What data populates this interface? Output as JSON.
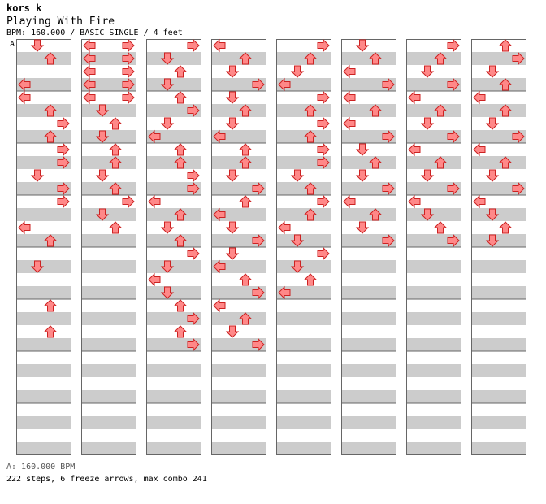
{
  "header": {
    "artist": "kors k",
    "title": "Playing With Fire",
    "subtitle": "BPM: 160.000 / BASIC SINGLE / 4 feet"
  },
  "bpm_marker": "A",
  "footer": {
    "bpm_legend": "A: 160.000 BPM",
    "stats": "222 steps, 6 freeze arrows, max combo 241"
  },
  "colors": {
    "note_quarter": "#ff8888",
    "note_eighth": "#66aaff",
    "freeze": "#88dd88",
    "band_gray": "#cccccc",
    "band_white": "#ffffff",
    "border": "#666666"
  },
  "chart_data": {
    "type": "stepchart",
    "lanes": [
      "left",
      "down",
      "up",
      "right"
    ],
    "measures_per_column": 8,
    "beats_per_measure": 4,
    "columns": [
      {
        "notes": [
          [
            1,
            0
          ],
          [
            2,
            1
          ],
          [
            0,
            3
          ],
          [
            0,
            4
          ],
          [
            2,
            5
          ],
          [
            3,
            6
          ],
          [
            2,
            7
          ],
          [
            3,
            8
          ],
          [
            3,
            9
          ],
          [
            1,
            10
          ],
          [
            3,
            11
          ],
          [
            3,
            12
          ],
          [
            0,
            14
          ],
          [
            2,
            15
          ],
          [
            1,
            17
          ],
          [
            2,
            20
          ],
          [
            2,
            22
          ]
        ]
      },
      {
        "notes": [
          [
            0,
            0
          ],
          [
            3,
            0
          ],
          [
            0,
            1
          ],
          [
            3,
            1
          ],
          [
            0,
            2
          ],
          [
            3,
            2
          ],
          [
            0,
            3
          ],
          [
            3,
            3
          ],
          [
            0,
            4
          ],
          [
            3,
            4
          ],
          [
            1,
            5
          ],
          [
            2,
            6
          ],
          [
            1,
            7
          ],
          [
            2,
            8
          ],
          [
            2,
            9
          ],
          [
            1,
            10
          ],
          [
            2,
            11
          ],
          [
            3,
            12
          ],
          [
            1,
            13
          ],
          [
            2,
            14
          ]
        ]
      },
      {
        "notes": [
          [
            3,
            0
          ],
          [
            1,
            1
          ],
          [
            2,
            2
          ],
          [
            1,
            3
          ],
          [
            2,
            4
          ],
          [
            3,
            5
          ],
          [
            1,
            6
          ],
          [
            0,
            7
          ],
          [
            2,
            8
          ],
          [
            2,
            9
          ],
          [
            3,
            10
          ],
          [
            3,
            11
          ],
          [
            0,
            12
          ],
          [
            2,
            13
          ],
          [
            1,
            14
          ],
          [
            2,
            15
          ],
          [
            3,
            16
          ],
          [
            1,
            17
          ],
          [
            0,
            18
          ],
          [
            1,
            19
          ],
          [
            2,
            20
          ],
          [
            3,
            21
          ],
          [
            2,
            22
          ],
          [
            3,
            23
          ]
        ]
      },
      {
        "notes": [
          [
            0,
            0
          ],
          [
            2,
            1
          ],
          [
            1,
            2
          ],
          [
            3,
            3
          ],
          [
            1,
            4
          ],
          [
            2,
            5
          ],
          [
            1,
            6
          ],
          [
            0,
            7
          ],
          [
            2,
            8
          ],
          [
            2,
            9
          ],
          [
            1,
            10
          ],
          [
            3,
            11
          ],
          [
            2,
            12
          ],
          [
            0,
            13
          ],
          [
            1,
            14
          ],
          [
            3,
            15
          ],
          [
            1,
            16
          ],
          [
            0,
            17
          ],
          [
            2,
            18
          ],
          [
            3,
            19
          ],
          [
            0,
            20
          ],
          [
            2,
            21
          ],
          [
            1,
            22
          ],
          [
            3,
            23
          ]
        ]
      },
      {
        "notes": [
          [
            3,
            0
          ],
          [
            2,
            1
          ],
          [
            1,
            2
          ],
          [
            0,
            3
          ],
          [
            3,
            4
          ],
          [
            2,
            5
          ],
          [
            3,
            6
          ],
          [
            2,
            7
          ],
          [
            3,
            8
          ],
          [
            3,
            9
          ],
          [
            1,
            10
          ],
          [
            2,
            11
          ],
          [
            3,
            12
          ],
          [
            2,
            13
          ],
          [
            0,
            14
          ],
          [
            1,
            15
          ],
          [
            3,
            16
          ],
          [
            1,
            17
          ],
          [
            2,
            18
          ],
          [
            0,
            19
          ]
        ]
      },
      {
        "notes": [
          [
            1,
            0
          ],
          [
            2,
            1
          ],
          [
            0,
            2
          ],
          [
            3,
            3
          ],
          [
            0,
            4
          ],
          [
            2,
            5
          ],
          [
            0,
            6
          ],
          [
            3,
            7
          ],
          [
            1,
            8
          ],
          [
            2,
            9
          ],
          [
            1,
            10
          ],
          [
            3,
            11
          ],
          [
            0,
            12
          ],
          [
            2,
            13
          ],
          [
            1,
            14
          ],
          [
            3,
            15
          ]
        ]
      },
      {
        "notes": [
          [
            3,
            0
          ],
          [
            2,
            1
          ],
          [
            1,
            2
          ],
          [
            3,
            3
          ],
          [
            0,
            4
          ],
          [
            2,
            5
          ],
          [
            1,
            6
          ],
          [
            3,
            7
          ],
          [
            0,
            8
          ],
          [
            2,
            9
          ],
          [
            1,
            10
          ],
          [
            3,
            11
          ],
          [
            0,
            12
          ],
          [
            1,
            13
          ],
          [
            2,
            14
          ],
          [
            3,
            15
          ]
        ]
      },
      {
        "notes": [
          [
            2,
            0
          ],
          [
            3,
            1
          ],
          [
            1,
            2
          ],
          [
            2,
            3
          ],
          [
            0,
            4
          ],
          [
            2,
            5
          ],
          [
            1,
            6
          ],
          [
            3,
            7
          ],
          [
            0,
            8
          ],
          [
            2,
            9
          ],
          [
            1,
            10
          ],
          [
            3,
            11
          ],
          [
            0,
            12
          ],
          [
            1,
            13
          ],
          [
            2,
            14
          ],
          [
            1,
            15
          ]
        ]
      }
    ]
  }
}
